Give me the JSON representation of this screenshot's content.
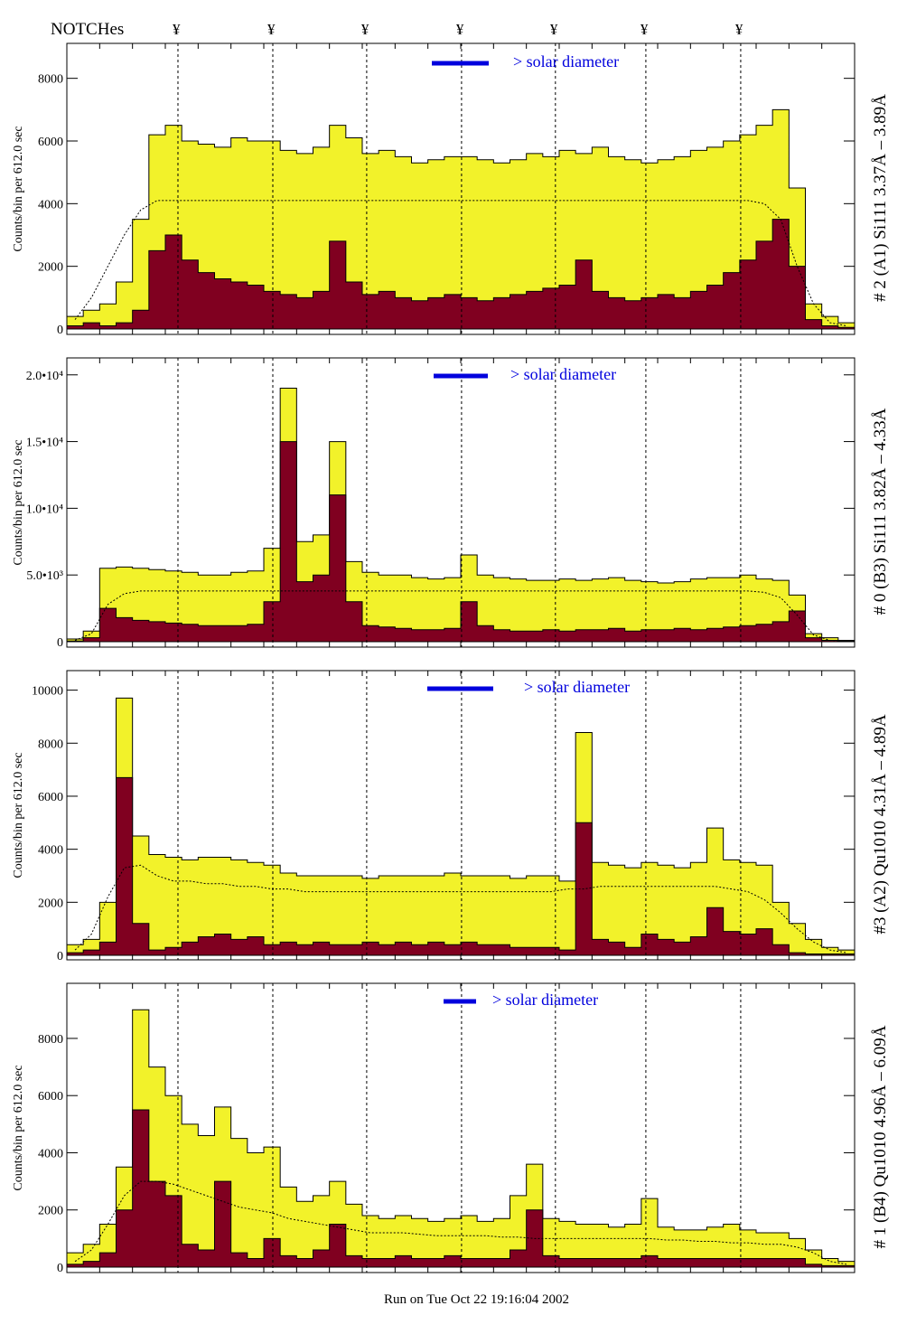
{
  "header": {
    "notches_label": "NOTCHes",
    "notch_symbol": "¥"
  },
  "footer": {
    "run_text": "Run on Tue Oct 22 19:16:04 2002"
  },
  "legend_label": "> solar diameter",
  "colors": {
    "total": "#f2f22a",
    "lower": "#800020",
    "legend": "#0000dd"
  },
  "chart_data": [
    {
      "type": "bar",
      "title": "# 2 (A1) Si111  3.37Å – 3.89Å",
      "ylabel": "Counts/bin per    612.0 sec",
      "ylim": [
        0,
        9000
      ],
      "yticks": [
        0,
        2000,
        4000,
        6000,
        8000
      ],
      "ytick_labels": [
        "0",
        "2000",
        "4000",
        "6000",
        "8000"
      ],
      "notch_positions": [
        6.77,
        12.55,
        18.27,
        24.05,
        29.77,
        35.28,
        41.06
      ],
      "series": [
        {
          "name": "total",
          "values": [
            400,
            600,
            800,
            1500,
            3500,
            6200,
            6500,
            6000,
            5900,
            5800,
            6100,
            6000,
            6000,
            5700,
            5600,
            5800,
            6500,
            6100,
            5600,
            5700,
            5500,
            5300,
            5400,
            5500,
            5500,
            5400,
            5300,
            5400,
            5600,
            5500,
            5700,
            5600,
            5800,
            5500,
            5400,
            5300,
            5400,
            5500,
            5700,
            5800,
            6000,
            6200,
            6500,
            7000,
            4500,
            800,
            400,
            200
          ]
        },
        {
          "name": "lower",
          "values": [
            100,
            200,
            100,
            200,
            600,
            2500,
            3000,
            2200,
            1800,
            1600,
            1500,
            1400,
            1200,
            1100,
            1000,
            1200,
            2800,
            1500,
            1100,
            1200,
            1000,
            900,
            1000,
            1100,
            1000,
            900,
            1000,
            1100,
            1200,
            1300,
            1400,
            2200,
            1200,
            1000,
            900,
            1000,
            1100,
            1000,
            1200,
            1400,
            1800,
            2200,
            2800,
            3500,
            2000,
            300,
            100,
            50
          ]
        },
        {
          "name": "smooth",
          "values": [
            300,
            1000,
            2000,
            3000,
            3800,
            4100,
            4100,
            4100,
            4100,
            4100,
            4100,
            4100,
            4100,
            4100,
            4100,
            4100,
            4100,
            4100,
            4100,
            4100,
            4100,
            4100,
            4100,
            4100,
            4100,
            4100,
            4100,
            4100,
            4100,
            4100,
            4100,
            4100,
            4100,
            4100,
            4100,
            4100,
            4100,
            4100,
            4100,
            4100,
            4100,
            4100,
            4000,
            3500,
            2000,
            800,
            200,
            100
          ]
        }
      ]
    },
    {
      "type": "bar",
      "title": "# 0 (B3) Si111  3.82Å – 4.33Å",
      "ylabel": "Counts/bin per    612.0 sec",
      "ylim": [
        0,
        21000
      ],
      "yticks": [
        0,
        5000,
        10000,
        15000,
        20000
      ],
      "ytick_labels": [
        "0",
        "5.0•10³",
        "1.0•10⁴",
        "1.5•10⁴",
        "2.0•10⁴"
      ],
      "notch_positions": [
        6.77,
        12.55,
        18.27,
        24.05,
        29.77,
        35.28,
        41.06
      ],
      "series": [
        {
          "name": "total",
          "values": [
            200,
            800,
            5500,
            5600,
            5500,
            5400,
            5300,
            5200,
            5000,
            5000,
            5200,
            5300,
            7000,
            19000,
            7500,
            8000,
            15000,
            6000,
            5200,
            5000,
            5000,
            4800,
            4700,
            4800,
            6500,
            5000,
            4800,
            4700,
            4600,
            4600,
            4700,
            4600,
            4700,
            4800,
            4600,
            4500,
            4400,
            4500,
            4700,
            4800,
            4800,
            5000,
            4700,
            4600,
            3500,
            600,
            300,
            100
          ]
        },
        {
          "name": "lower",
          "values": [
            50,
            300,
            2500,
            1800,
            1600,
            1500,
            1400,
            1300,
            1200,
            1200,
            1200,
            1300,
            3000,
            15000,
            4500,
            5000,
            11000,
            3000,
            1200,
            1100,
            1000,
            900,
            900,
            1000,
            3000,
            1200,
            900,
            800,
            800,
            900,
            800,
            900,
            900,
            1000,
            800,
            900,
            900,
            1000,
            900,
            1000,
            1100,
            1200,
            1300,
            1500,
            2300,
            300,
            100,
            50
          ]
        },
        {
          "name": "smooth",
          "values": [
            100,
            600,
            2800,
            3600,
            3800,
            3800,
            3800,
            3800,
            3800,
            3800,
            3800,
            3800,
            3800,
            3800,
            3800,
            3800,
            3800,
            3800,
            3800,
            3800,
            3800,
            3800,
            3800,
            3800,
            3800,
            3800,
            3800,
            3800,
            3800,
            3800,
            3800,
            3800,
            3800,
            3800,
            3800,
            3800,
            3800,
            3800,
            3800,
            3800,
            3800,
            3800,
            3700,
            3300,
            2000,
            500,
            100,
            50
          ]
        }
      ]
    },
    {
      "type": "bar",
      "title": "#3 (A2) Qu1010  4.31Å – 4.89Å",
      "ylabel": "Counts/bin per    612.0 sec",
      "ylim": [
        0,
        10600
      ],
      "yticks": [
        0,
        2000,
        4000,
        6000,
        8000,
        10000
      ],
      "ytick_labels": [
        "0",
        "2000",
        "4000",
        "6000",
        "8000",
        "10000"
      ],
      "notch_positions": [
        6.77,
        12.55,
        18.27,
        24.05,
        29.77,
        35.28,
        41.06
      ],
      "series": [
        {
          "name": "total",
          "values": [
            400,
            600,
            2000,
            9700,
            4500,
            3800,
            3700,
            3600,
            3700,
            3700,
            3600,
            3500,
            3400,
            3100,
            3000,
            3000,
            3000,
            3000,
            2900,
            3000,
            3000,
            3000,
            3000,
            3100,
            3000,
            3000,
            3000,
            2900,
            3000,
            3000,
            2800,
            8400,
            3500,
            3400,
            3300,
            3500,
            3400,
            3300,
            3500,
            4800,
            3600,
            3500,
            3400,
            2000,
            1200,
            600,
            300,
            200
          ]
        },
        {
          "name": "lower",
          "values": [
            100,
            200,
            500,
            6700,
            1200,
            200,
            300,
            500,
            700,
            800,
            600,
            700,
            400,
            500,
            400,
            500,
            400,
            400,
            500,
            400,
            500,
            400,
            500,
            400,
            500,
            400,
            400,
            300,
            300,
            300,
            200,
            5000,
            600,
            500,
            300,
            800,
            600,
            500,
            700,
            1800,
            900,
            800,
            1000,
            400,
            100,
            50,
            50,
            50
          ]
        },
        {
          "name": "smooth",
          "values": [
            200,
            800,
            2200,
            3300,
            3400,
            3000,
            2800,
            2800,
            2700,
            2700,
            2600,
            2600,
            2500,
            2500,
            2400,
            2400,
            2400,
            2400,
            2400,
            2400,
            2400,
            2400,
            2400,
            2400,
            2400,
            2400,
            2400,
            2400,
            2400,
            2400,
            2500,
            2500,
            2600,
            2600,
            2600,
            2600,
            2600,
            2600,
            2600,
            2600,
            2500,
            2400,
            2100,
            1600,
            1000,
            500,
            200,
            100
          ]
        }
      ]
    },
    {
      "type": "bar",
      "title": "# 1 (B4) Qu1010 4.96Å – 6.09Å",
      "ylabel": "Counts/bin per    612.0 sec",
      "ylim": [
        0,
        9800
      ],
      "yticks": [
        0,
        2000,
        4000,
        6000,
        8000
      ],
      "ytick_labels": [
        "0",
        "2000",
        "4000",
        "6000",
        "8000"
      ],
      "notch_positions": [
        6.77,
        12.55,
        18.27,
        24.05,
        29.77,
        35.28,
        41.06
      ],
      "series": [
        {
          "name": "total",
          "values": [
            500,
            800,
            1500,
            3500,
            9000,
            7000,
            6000,
            5000,
            4600,
            5600,
            4500,
            4000,
            4200,
            2800,
            2300,
            2500,
            3000,
            2200,
            1800,
            1700,
            1800,
            1700,
            1600,
            1700,
            1800,
            1600,
            1700,
            2500,
            3600,
            1700,
            1600,
            1500,
            1500,
            1400,
            1500,
            2400,
            1400,
            1300,
            1300,
            1400,
            1500,
            1300,
            1200,
            1200,
            1000,
            600,
            300,
            200
          ]
        },
        {
          "name": "lower",
          "values": [
            100,
            200,
            500,
            2000,
            5500,
            3000,
            2500,
            800,
            600,
            3000,
            500,
            300,
            1000,
            400,
            300,
            600,
            1500,
            400,
            300,
            300,
            400,
            300,
            300,
            400,
            300,
            300,
            300,
            600,
            2000,
            400,
            300,
            300,
            300,
            300,
            300,
            400,
            300,
            300,
            300,
            300,
            300,
            300,
            300,
            300,
            300,
            100,
            50,
            50
          ]
        },
        {
          "name": "smooth",
          "values": [
            200,
            600,
            1500,
            2500,
            3000,
            3000,
            2900,
            2700,
            2500,
            2300,
            2100,
            2000,
            1900,
            1700,
            1600,
            1500,
            1400,
            1300,
            1200,
            1200,
            1200,
            1150,
            1100,
            1100,
            1100,
            1100,
            1050,
            1050,
            1000,
            1000,
            1000,
            1000,
            1000,
            1000,
            1000,
            1000,
            950,
            950,
            900,
            900,
            850,
            850,
            800,
            800,
            700,
            500,
            200,
            100
          ]
        }
      ]
    }
  ]
}
